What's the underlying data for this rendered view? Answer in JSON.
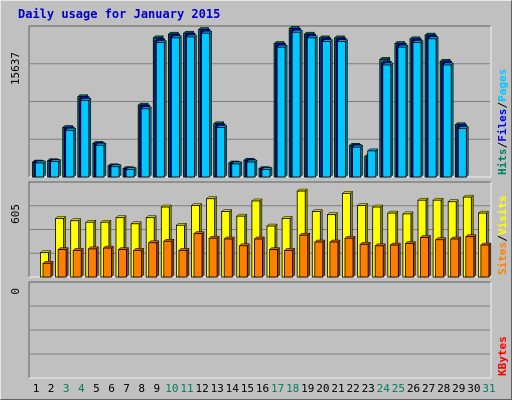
{
  "title": "Daily usage for January 2015",
  "colors": {
    "hits": "#00805c",
    "files": "#0000ff",
    "pages": "#00c8ff",
    "visits": "#ffff00",
    "sites": "#ff8000",
    "kbytes": "#ff0000",
    "weekend_label": "#00805c",
    "weekday_label": "#000000",
    "background": "#c0c0c0",
    "grid": "#808080"
  },
  "chart_data": {
    "type": "bar",
    "categories": [
      "1",
      "2",
      "3",
      "4",
      "5",
      "6",
      "7",
      "8",
      "9",
      "10",
      "11",
      "12",
      "13",
      "14",
      "15",
      "16",
      "17",
      "18",
      "19",
      "20",
      "21",
      "22",
      "23",
      "24",
      "25",
      "26",
      "27",
      "28",
      "29",
      "30",
      "31"
    ],
    "weekend_days": [
      "3",
      "4",
      "10",
      "11",
      "17",
      "18",
      "24",
      "25",
      "31"
    ],
    "panels": [
      {
        "id": "top",
        "ymax_label": "15637",
        "ymax": 15637,
        "legend": [
          {
            "text": "Hits",
            "color_key": "hits"
          },
          {
            "text": "Files",
            "color_key": "files"
          },
          {
            "text": "Pages",
            "color_key": "pages"
          }
        ],
        "series": [
          {
            "name": "Hits",
            "color_key": "hits",
            "values": [
              1600,
              1750,
              5300,
              8600,
              3600,
              1200,
              900,
              7700,
              14900,
              15300,
              15400,
              15800,
              5700,
              1500,
              1800,
              900,
              14300,
              15900,
              15300,
              14900,
              14900,
              3400,
              2200,
              12600,
              14300,
              14800,
              15200,
              12400,
              5600,
              0,
              0
            ]
          },
          {
            "name": "Files",
            "color_key": "files",
            "values": [
              1550,
              1700,
              5150,
              8400,
              3500,
              1150,
              850,
              7500,
              14600,
              15100,
              15200,
              15600,
              5500,
              1450,
              1700,
              850,
              14100,
              15700,
              15100,
              14700,
              14700,
              3300,
              2000,
              12200,
              14100,
              14600,
              15000,
              12200,
              5400,
              0,
              0
            ]
          },
          {
            "name": "Pages",
            "color_key": "pages",
            "values": [
              1500,
              1650,
              5000,
              8200,
              3400,
              1100,
              800,
              7300,
              14400,
              14900,
              15000,
              15400,
              5300,
              1400,
              1600,
              800,
              13900,
              15500,
              14900,
              14500,
              14500,
              3200,
              2800,
              12000,
              13900,
              14400,
              14800,
              12000,
              5200,
              0,
              0
            ]
          }
        ]
      },
      {
        "id": "middle",
        "ymax_label": "605",
        "ymax": 605,
        "legend": [
          {
            "text": "Sites",
            "color_key": "sites"
          },
          {
            "text": "Visits",
            "color_key": "visits"
          }
        ],
        "series": [
          {
            "name": "Visits",
            "color_key": "visits",
            "values": [
              160,
              385,
              370,
              360,
              360,
              390,
              350,
              390,
              460,
              340,
              470,
              515,
              430,
              400,
              500,
              335,
              385,
              565,
              430,
              410,
              550,
              470,
              460,
              420,
              415,
              505,
              505,
              495,
              525,
              420,
              0
            ]
          },
          {
            "name": "Sites",
            "color_key": "sites",
            "values": [
              90,
              180,
              175,
              185,
              190,
              180,
              175,
              225,
              235,
              175,
              285,
              255,
              250,
              205,
              250,
              180,
              175,
              275,
              230,
              230,
              255,
              215,
              205,
              210,
              220,
              260,
              245,
              250,
              265,
              210,
              0
            ]
          }
        ]
      },
      {
        "id": "bottom",
        "ymax_label": "0",
        "ymax": 0,
        "legend": [
          {
            "text": "KBytes",
            "color_key": "kbytes"
          }
        ],
        "series": [
          {
            "name": "KBytes",
            "color_key": "kbytes",
            "values": []
          }
        ]
      }
    ]
  }
}
